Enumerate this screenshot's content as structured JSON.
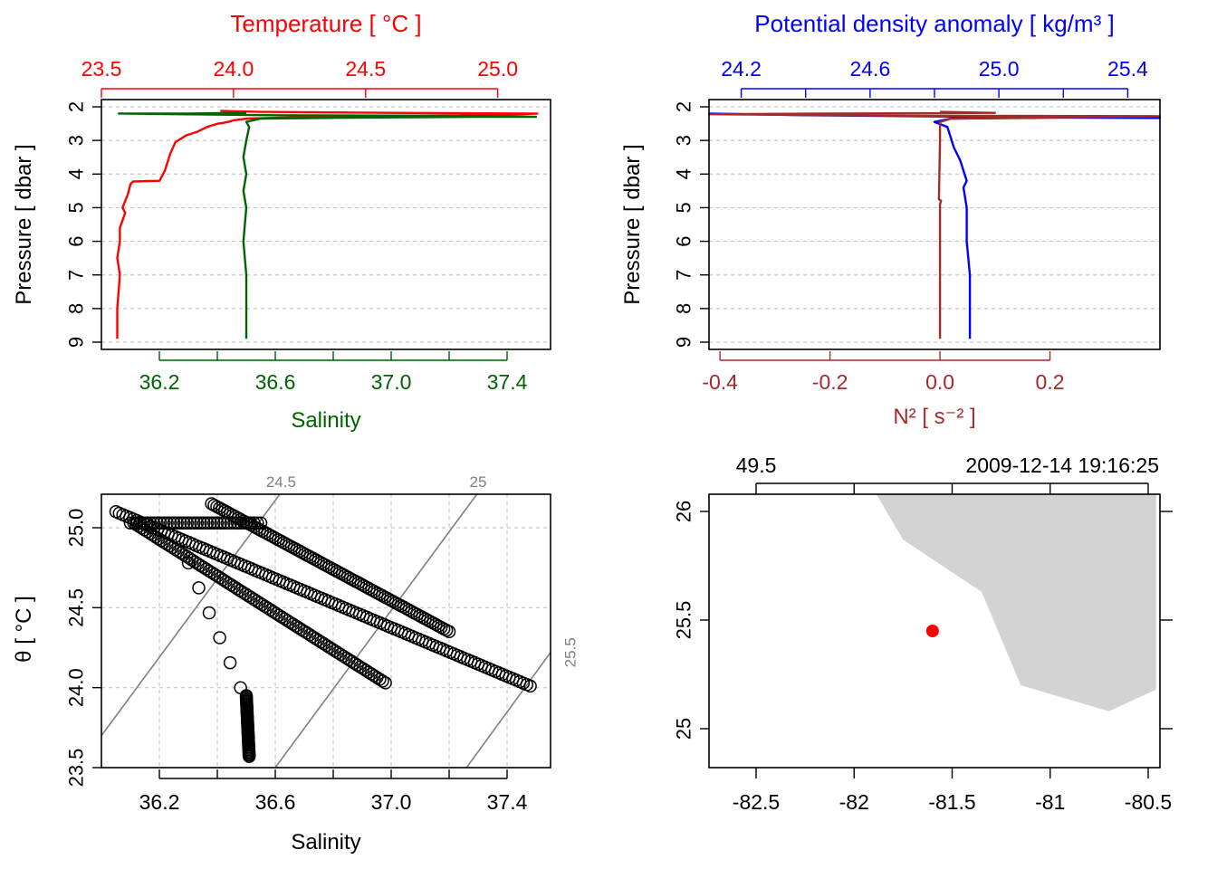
{
  "colors": {
    "temperature": "#ff0000",
    "salinity": "#006400",
    "density": "#0000ff",
    "n2": "#a52a2a",
    "axis": "#000000",
    "grid": "#c8c8c8",
    "isopycnal": "#808080",
    "land": "#d3d3d3",
    "station": "#ff0000"
  },
  "chart_data": [
    {
      "id": "ts_profile",
      "type": "line",
      "ylabel": "Pressure [ dbar ]",
      "ylim": [
        9.0,
        2.0
      ],
      "yticks": [
        2,
        3,
        4,
        5,
        6,
        7,
        8,
        9
      ],
      "top_axis": {
        "label": "Temperature [ °C ]",
        "lim": [
          23.5,
          25.2
        ],
        "ticks": [
          23.5,
          24.0,
          24.5,
          25.0
        ],
        "tick_labels": [
          "23.5",
          "24.0",
          "24.5",
          "25.0"
        ]
      },
      "bottom_axis": {
        "label": "Salinity",
        "lim": [
          36.0,
          37.55
        ],
        "ticks": [
          36.2,
          36.6,
          37.0,
          37.4
        ],
        "tick_labels": [
          "36.2",
          "36.6",
          "37.0",
          "37.4"
        ],
        "minor_ticks": [
          36.4,
          36.8,
          37.2
        ]
      },
      "series": [
        {
          "key": "temperature",
          "axis": "top",
          "x": [
            23.56,
            23.56,
            23.57,
            23.56,
            23.57,
            23.57,
            23.59,
            23.58,
            23.6,
            23.61,
            23.62,
            23.72,
            23.74,
            23.76,
            23.78,
            23.82,
            23.86,
            23.9,
            23.92,
            23.94,
            23.96,
            23.98,
            24.0,
            24.05,
            24.3,
            24.6,
            24.9,
            25.1,
            25.15,
            24.6,
            24.1,
            23.95
          ],
          "y": [
            8.9,
            8.0,
            7.0,
            6.5,
            6.0,
            5.6,
            5.15,
            5.0,
            4.6,
            4.3,
            4.22,
            4.2,
            3.9,
            3.4,
            3.05,
            2.85,
            2.75,
            2.6,
            2.55,
            2.5,
            2.48,
            2.45,
            2.4,
            2.35,
            2.3,
            2.27,
            2.25,
            2.22,
            2.2,
            2.18,
            2.15,
            2.12
          ]
        },
        {
          "key": "salinity",
          "axis": "bottom",
          "x": [
            36.5,
            36.5,
            36.49,
            36.5,
            36.49,
            36.5,
            36.49,
            36.5,
            36.51,
            36.5,
            36.55,
            36.9,
            37.3,
            37.5,
            37.2,
            36.6,
            36.06,
            36.3,
            36.5
          ],
          "y": [
            8.9,
            7.0,
            6.0,
            5.0,
            4.5,
            4.0,
            3.5,
            3.0,
            2.6,
            2.45,
            2.35,
            2.32,
            2.3,
            2.3,
            2.27,
            2.25,
            2.2,
            2.2,
            2.18
          ]
        }
      ]
    },
    {
      "id": "density_n2_profile",
      "type": "line",
      "ylabel": "Pressure [ dbar ]",
      "ylim": [
        9.0,
        2.0
      ],
      "yticks": [
        2,
        3,
        4,
        5,
        6,
        7,
        8,
        9
      ],
      "top_axis": {
        "label": "Potential density anomaly [ kg/m³ ]",
        "lim": [
          24.1,
          25.5
        ],
        "ticks": [
          24.2,
          24.6,
          25.0,
          25.4
        ],
        "tick_labels": [
          "24.2",
          "24.6",
          "25.0",
          "25.4"
        ],
        "minor_ticks": [
          24.4,
          24.8,
          25.2
        ]
      },
      "bottom_axis": {
        "label": "N² [ s⁻² ]",
        "lim": [
          -0.42,
          0.4
        ],
        "ticks": [
          -0.4,
          -0.2,
          0.0,
          0.2
        ],
        "tick_labels": [
          "-0.4",
          "-0.2",
          "0.0",
          "0.2"
        ]
      },
      "series": [
        {
          "key": "density",
          "axis": "top",
          "x": [
            24.91,
            24.91,
            24.9,
            24.9,
            24.89,
            24.9,
            24.88,
            24.86,
            24.85,
            24.84,
            24.8,
            24.85,
            25.2,
            25.5,
            25.0,
            24.4,
            24.1
          ],
          "y": [
            8.9,
            7.0,
            6.0,
            5.0,
            4.4,
            4.2,
            3.6,
            3.2,
            2.9,
            2.6,
            2.45,
            2.35,
            2.32,
            2.33,
            2.3,
            2.25,
            2.2
          ]
        },
        {
          "key": "n2",
          "axis": "bottom",
          "x": [
            0.0,
            0.0,
            0.0,
            0.002,
            -0.002,
            0.0,
            0.0,
            0.02,
            0.3,
            0.4,
            -0.1,
            -0.42,
            -0.2,
            0.1,
            0.0
          ],
          "y": [
            8.9,
            6.0,
            4.9,
            4.8,
            4.75,
            3.0,
            2.45,
            2.35,
            2.3,
            2.28,
            2.26,
            2.22,
            2.2,
            2.18,
            2.15
          ]
        }
      ]
    },
    {
      "id": "ts_diagram",
      "type": "scatter",
      "xlabel": "Salinity",
      "ylabel": "θ [ °C ]",
      "xlim": [
        36.0,
        37.55
      ],
      "ylim": [
        23.5,
        25.22
      ],
      "xticks": [
        36.2,
        36.6,
        37.0,
        37.4
      ],
      "xtick_labels": [
        "36.2",
        "36.6",
        "37.0",
        "37.4"
      ],
      "xminor_ticks": [
        36.4,
        36.8,
        37.2
      ],
      "yticks": [
        23.5,
        24.0,
        24.5,
        25.0
      ],
      "ytick_labels": [
        "23.5",
        "24.0",
        "24.5",
        "25.0"
      ],
      "isopycnals": [
        {
          "label": "24.5",
          "x": [
            36.0,
            36.62
          ],
          "y": [
            23.7,
            25.22
          ]
        },
        {
          "label": "25",
          "x": [
            36.6,
            37.3
          ],
          "y": [
            23.5,
            25.22
          ]
        },
        {
          "label": "25.5",
          "x": [
            37.26,
            37.55
          ],
          "y": [
            23.5,
            24.22
          ]
        }
      ],
      "branches": [
        {
          "from": [
            36.05,
            25.1
          ],
          "to": [
            37.48,
            24.01
          ],
          "n": 120
        },
        {
          "from": [
            36.12,
            25.02
          ],
          "to": [
            36.98,
            24.03
          ],
          "n": 90
        },
        {
          "from": [
            36.38,
            25.15
          ],
          "to": [
            37.2,
            24.35
          ],
          "n": 90
        },
        {
          "from": [
            36.1,
            25.03
          ],
          "to": [
            36.55,
            25.03
          ],
          "n": 40
        },
        {
          "from": [
            36.3,
            24.78
          ],
          "to": [
            36.48,
            24.0
          ],
          "n": 6
        },
        {
          "from": [
            36.5,
            23.95
          ],
          "to": [
            36.51,
            23.57
          ],
          "n": 45
        }
      ]
    },
    {
      "id": "station_map",
      "type": "scatter",
      "xlim": [
        -82.78,
        -80.46
      ],
      "ylim": [
        24.82,
        26.1
      ],
      "xticks": [
        -82.5,
        -82,
        -81.5,
        -81,
        -80.5
      ],
      "xtick_labels": [
        "-82.5",
        "-82",
        "-81.5",
        "-81",
        "-80.5"
      ],
      "yticks": [
        25,
        25.5,
        26
      ],
      "ytick_labels": [
        "25",
        "25.5",
        "26"
      ],
      "top_tick_labels": [
        "49.5",
        "2009-12-14 19:16:25"
      ],
      "land": {
        "lon": [
          -81.9,
          -81.75,
          -81.35,
          -81.15,
          -80.7,
          -80.46,
          -80.46
        ],
        "lat": [
          26.1,
          25.87,
          25.63,
          25.2,
          25.08,
          25.18,
          26.1
        ]
      },
      "station": {
        "lon": -81.6,
        "lat": 25.45
      }
    }
  ]
}
